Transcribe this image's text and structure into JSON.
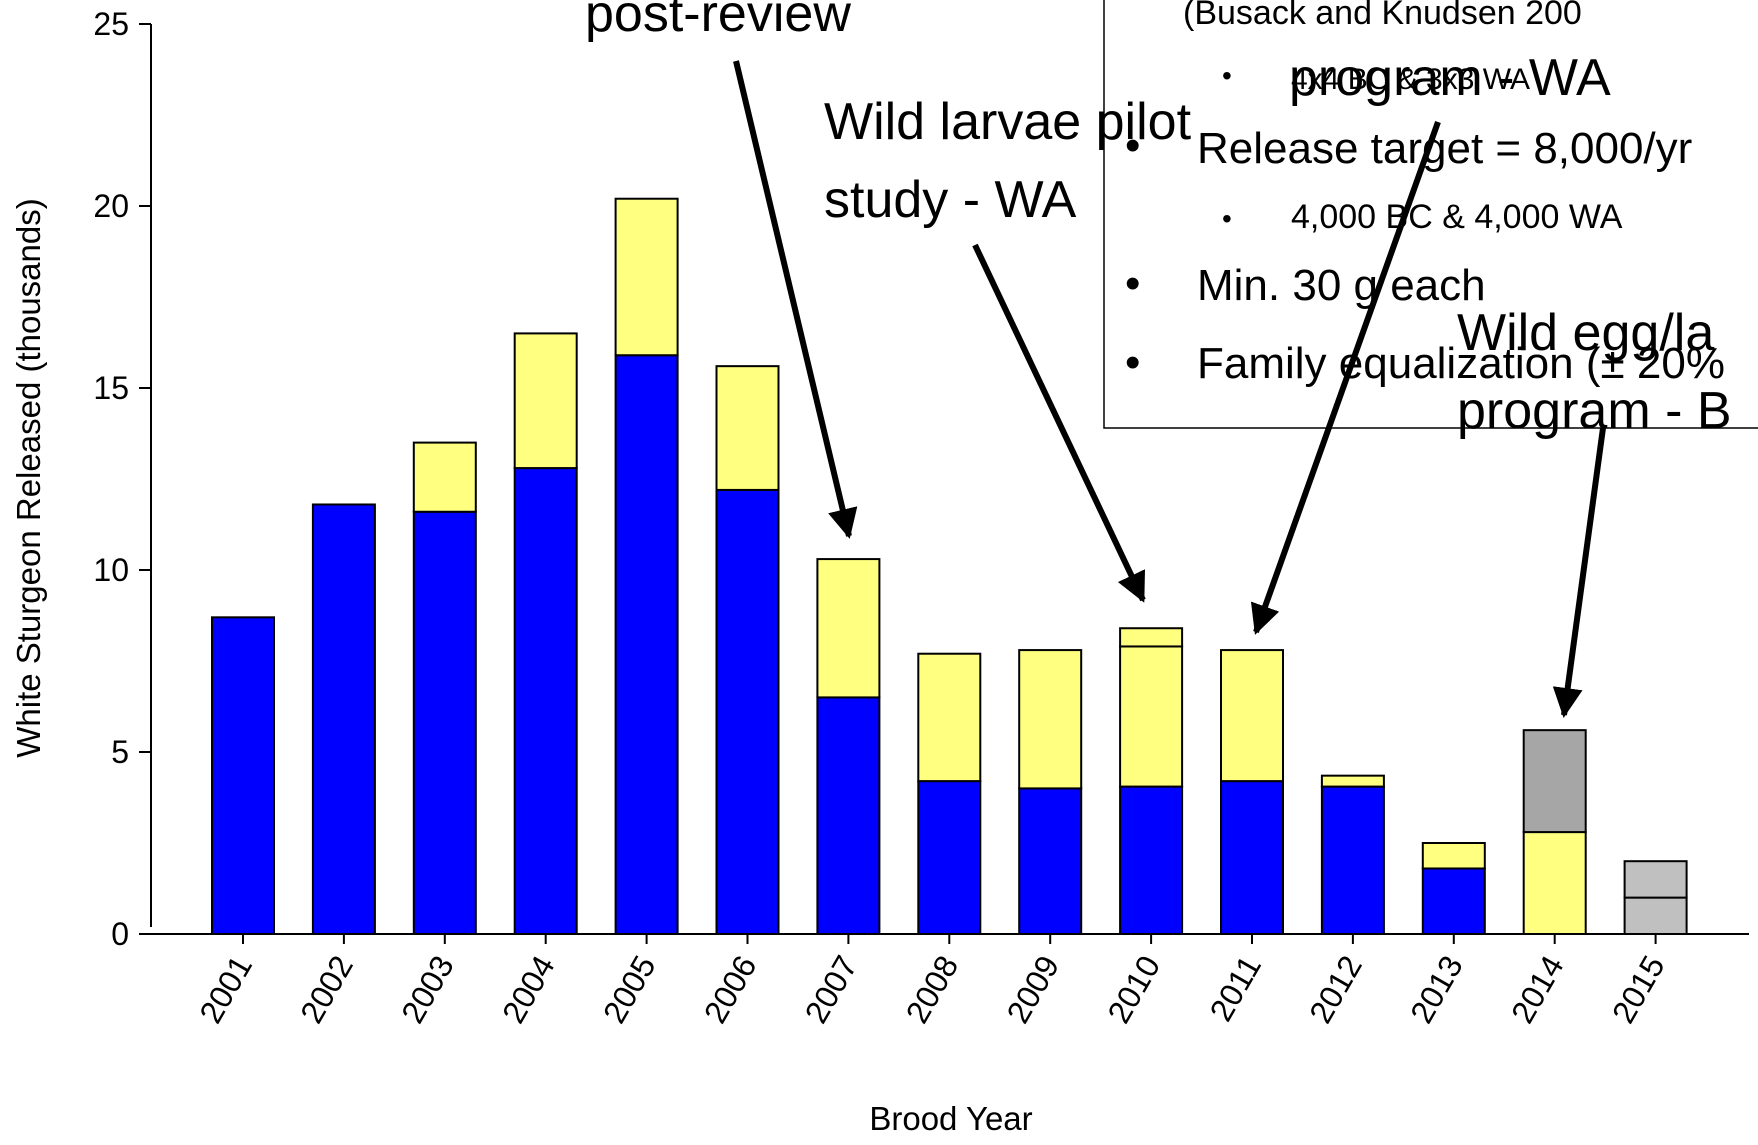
{
  "chart_data": {
    "type": "stacked_bar",
    "xlabel": "Brood Year",
    "ylabel": "White Sturgeon Released (thousands)",
    "categories": [
      "2001",
      "2002",
      "2003",
      "2004",
      "2005",
      "2006",
      "2007",
      "2008",
      "2009",
      "2010",
      "2011",
      "2012",
      "2013",
      "2014",
      "2015"
    ],
    "series": [
      {
        "color": "#0000ff",
        "values": [
          8.7,
          11.8,
          11.6,
          12.8,
          15.9,
          12.2,
          6.5,
          4.2,
          4.0,
          4.05,
          4.2,
          4.05,
          1.8,
          null,
          null
        ]
      },
      {
        "color": "#ffff80",
        "values": [
          null,
          null,
          1.9,
          3.7,
          4.3,
          3.4,
          3.8,
          3.5,
          3.8,
          3.85,
          3.6,
          0.3,
          0.7,
          2.8,
          null
        ]
      },
      {
        "color": "#ffff80",
        "values": [
          null,
          null,
          null,
          null,
          null,
          null,
          null,
          null,
          null,
          0.5,
          null,
          null,
          null,
          null,
          null
        ]
      },
      {
        "color": "#a6a6a6",
        "values": [
          null,
          null,
          null,
          null,
          null,
          null,
          null,
          null,
          null,
          null,
          null,
          null,
          null,
          2.8,
          null
        ]
      },
      {
        "color": "#c0c0c0",
        "values": [
          null,
          null,
          null,
          null,
          null,
          null,
          null,
          null,
          null,
          null,
          null,
          null,
          null,
          null,
          1
        ]
      },
      {
        "color": "#c0c0c0",
        "values": [
          null,
          null,
          null,
          null,
          null,
          null,
          null,
          null,
          null,
          null,
          null,
          null,
          null,
          null,
          1
        ]
      }
    ],
    "ylim": [
      0,
      25
    ],
    "yticks": [
      0,
      5,
      10,
      15,
      20,
      25
    ],
    "annotations": {
      "post_review": "post-review",
      "larvae_line1": "Wild larvae pilot",
      "larvae_line2": "study - WA",
      "program_wa": "program - WA",
      "egg_line1": "Wild egg/la",
      "egg_line2": "program - B",
      "box": {
        "citation": "(Busack and Knudsen 200",
        "crosses": "4x4 BC & 3x3 WA",
        "target": "Release target = 8,000/yr",
        "split": "4,000 BC & 4,000 WA",
        "size": "Min. 30 g each",
        "family": "Family equalization (± 20%"
      }
    }
  }
}
